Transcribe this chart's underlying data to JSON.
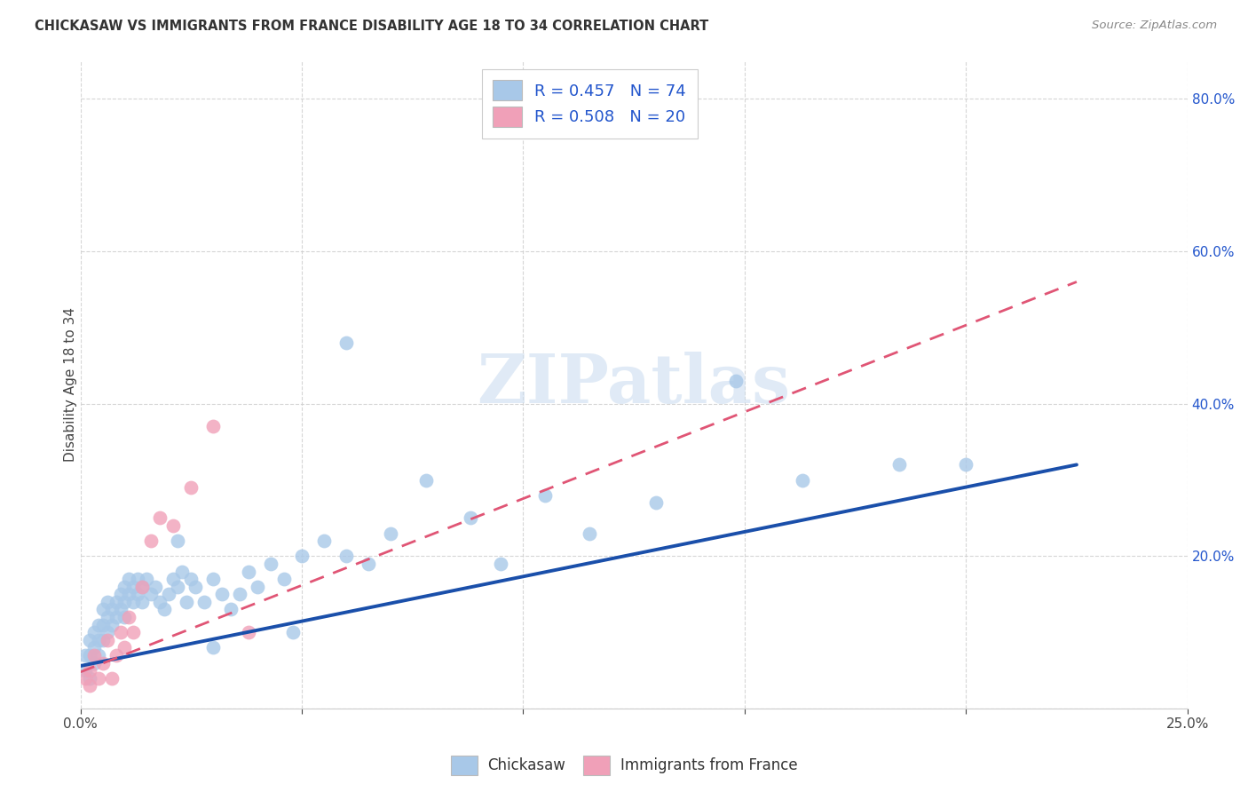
{
  "title": "CHICKASAW VS IMMIGRANTS FROM FRANCE DISABILITY AGE 18 TO 34 CORRELATION CHART",
  "source": "Source: ZipAtlas.com",
  "ylabel": "Disability Age 18 to 34",
  "xlim": [
    0.0,
    0.25
  ],
  "ylim": [
    0.0,
    0.85
  ],
  "legend_label1": "Chickasaw",
  "legend_label2": "Immigrants from France",
  "r1": 0.457,
  "n1": 74,
  "r2": 0.508,
  "n2": 20,
  "color1": "#a8c8e8",
  "color2": "#f0a0b8",
  "line_color1": "#1a4faa",
  "line_color2": "#e05575",
  "watermark": "ZIPatlas",
  "blue_x": [
    0.001,
    0.001,
    0.002,
    0.002,
    0.002,
    0.003,
    0.003,
    0.003,
    0.004,
    0.004,
    0.004,
    0.005,
    0.005,
    0.005,
    0.006,
    0.006,
    0.006,
    0.007,
    0.007,
    0.008,
    0.008,
    0.009,
    0.009,
    0.01,
    0.01,
    0.01,
    0.011,
    0.011,
    0.012,
    0.012,
    0.013,
    0.013,
    0.014,
    0.014,
    0.015,
    0.016,
    0.017,
    0.018,
    0.019,
    0.02,
    0.021,
    0.022,
    0.023,
    0.024,
    0.025,
    0.026,
    0.028,
    0.03,
    0.032,
    0.034,
    0.036,
    0.038,
    0.04,
    0.043,
    0.046,
    0.05,
    0.055,
    0.06,
    0.065,
    0.07,
    0.078,
    0.088,
    0.095,
    0.105,
    0.115,
    0.13,
    0.148,
    0.163,
    0.185,
    0.2,
    0.06,
    0.03,
    0.022,
    0.048
  ],
  "blue_y": [
    0.07,
    0.05,
    0.09,
    0.07,
    0.04,
    0.1,
    0.08,
    0.06,
    0.11,
    0.09,
    0.07,
    0.13,
    0.11,
    0.09,
    0.14,
    0.12,
    0.1,
    0.13,
    0.11,
    0.14,
    0.12,
    0.15,
    0.13,
    0.16,
    0.14,
    0.12,
    0.17,
    0.15,
    0.16,
    0.14,
    0.17,
    0.15,
    0.16,
    0.14,
    0.17,
    0.15,
    0.16,
    0.14,
    0.13,
    0.15,
    0.17,
    0.16,
    0.18,
    0.14,
    0.17,
    0.16,
    0.14,
    0.17,
    0.15,
    0.13,
    0.15,
    0.18,
    0.16,
    0.19,
    0.17,
    0.2,
    0.22,
    0.2,
    0.19,
    0.23,
    0.3,
    0.25,
    0.19,
    0.28,
    0.23,
    0.27,
    0.43,
    0.3,
    0.32,
    0.32,
    0.48,
    0.08,
    0.22,
    0.1
  ],
  "pink_x": [
    0.001,
    0.002,
    0.002,
    0.003,
    0.004,
    0.005,
    0.006,
    0.007,
    0.008,
    0.009,
    0.01,
    0.011,
    0.012,
    0.014,
    0.016,
    0.018,
    0.021,
    0.025,
    0.03,
    0.038
  ],
  "pink_y": [
    0.04,
    0.03,
    0.05,
    0.07,
    0.04,
    0.06,
    0.09,
    0.04,
    0.07,
    0.1,
    0.08,
    0.12,
    0.1,
    0.16,
    0.22,
    0.25,
    0.24,
    0.29,
    0.37,
    0.1
  ],
  "blue_line_x0": 0.0,
  "blue_line_y0": 0.056,
  "blue_line_x1": 0.225,
  "blue_line_y1": 0.32,
  "pink_line_x0": 0.0,
  "pink_line_y0": 0.048,
  "pink_line_x1": 0.225,
  "pink_line_y1": 0.56
}
